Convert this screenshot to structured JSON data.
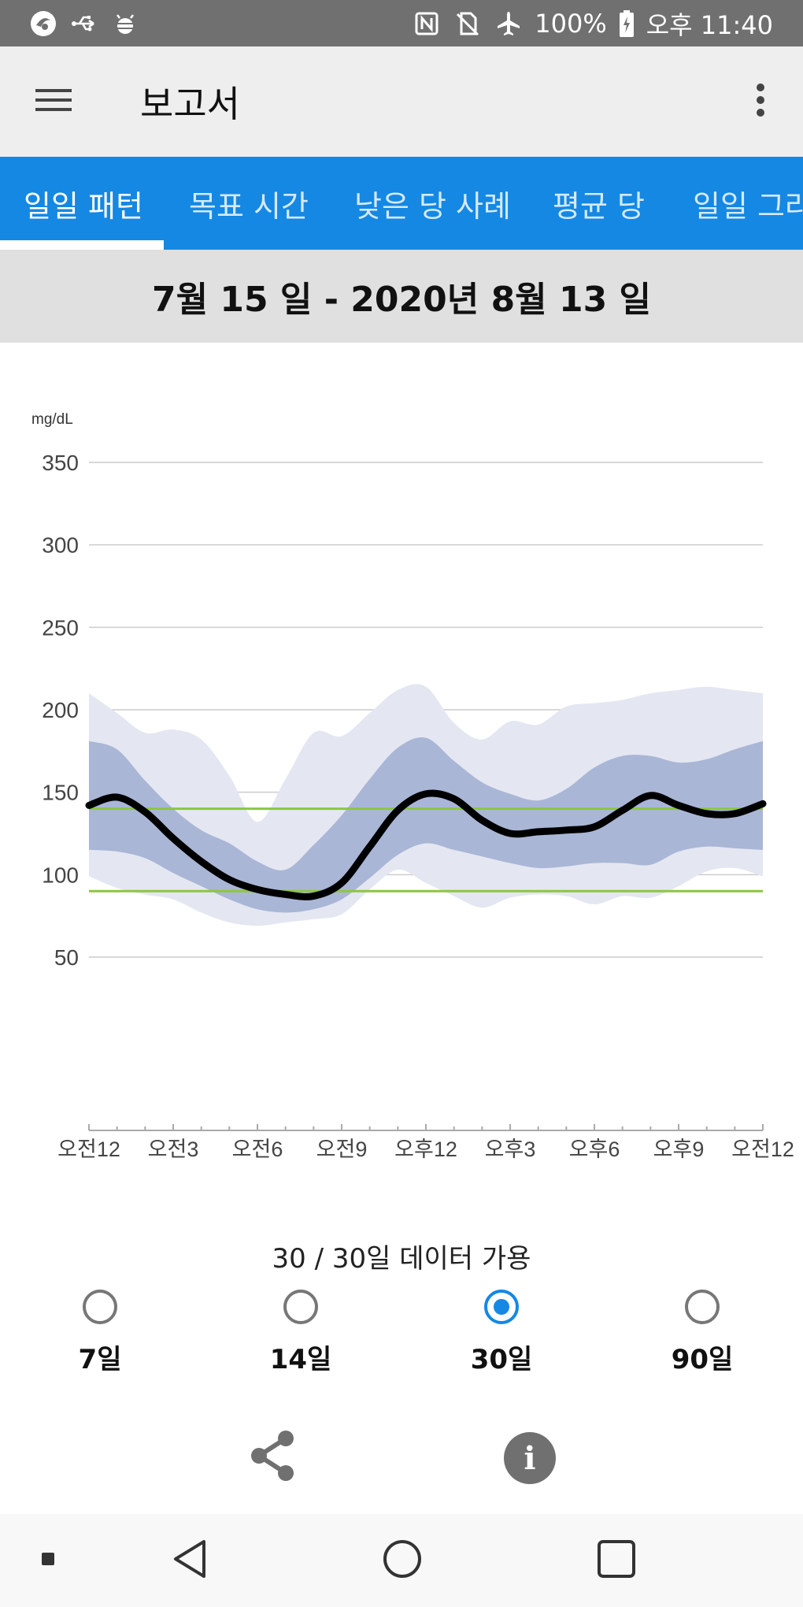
{
  "status_bar": {
    "left_icons": [
      "app-notification-icon",
      "usb-icon",
      "debug-bug-icon"
    ],
    "right_icons": [
      "nfc-icon",
      "no-sim-icon",
      "airplane-mode-icon",
      "battery-charging-icon"
    ],
    "battery": "100%",
    "time": "오후 11:40"
  },
  "app_bar": {
    "title": "보고서",
    "menu_icon": "menu-icon",
    "more_icon": "more-vert-icon"
  },
  "tabs": [
    {
      "label": "일일 패턴",
      "active": true
    },
    {
      "label": "목표 시간",
      "active": false
    },
    {
      "label": "낮은 당 사례",
      "active": false
    },
    {
      "label": "평균 당",
      "active": false
    },
    {
      "label": "일일 그라",
      "active": false
    }
  ],
  "date_range": "7월 15 일 - 2020년 8월 13 일",
  "chart_data": {
    "type": "area",
    "ylabel": "mg/dL",
    "ylim": [
      0,
      350
    ],
    "y_ticks": [
      350,
      300,
      250,
      200,
      150,
      100,
      50
    ],
    "grid": true,
    "x_tick_labels": [
      "오전12",
      "오전3",
      "오전6",
      "오전9",
      "오후12",
      "오후3",
      "오후6",
      "오후9",
      "오전12"
    ],
    "x_hours": [
      0,
      1,
      2,
      3,
      4,
      5,
      6,
      7,
      8,
      9,
      10,
      11,
      12,
      13,
      14,
      15,
      16,
      17,
      18,
      19,
      20,
      21,
      22,
      23,
      24
    ],
    "target_range": [
      90,
      140
    ],
    "colors": {
      "outer_band": "#e4e7f1",
      "inner_band": "#aab6d6",
      "median": "#000000",
      "target": "#8dc63f",
      "grid": "#cccccc"
    },
    "series": [
      {
        "role": "p95",
        "values": [
          210,
          198,
          186,
          188,
          182,
          160,
          132,
          158,
          186,
          184,
          198,
          212,
          214,
          192,
          182,
          193,
          191,
          202,
          204,
          206,
          210,
          212,
          214,
          212,
          210
        ]
      },
      {
        "role": "p75",
        "values": [
          181,
          176,
          157,
          140,
          127,
          119,
          108,
          103,
          118,
          136,
          158,
          177,
          183,
          169,
          156,
          149,
          145,
          152,
          165,
          172,
          172,
          168,
          170,
          176,
          181
        ]
      },
      {
        "role": "median",
        "values": [
          142,
          147,
          138,
          122,
          108,
          97,
          91,
          88,
          87,
          95,
          117,
          139,
          149,
          146,
          133,
          125,
          126,
          127,
          129,
          139,
          148,
          142,
          137,
          137,
          143
        ]
      },
      {
        "role": "p25",
        "values": [
          115,
          114,
          110,
          101,
          93,
          85,
          79,
          77,
          79,
          85,
          98,
          112,
          119,
          115,
          111,
          107,
          104,
          105,
          107,
          107,
          106,
          114,
          117,
          116,
          115
        ]
      },
      {
        "role": "p5",
        "values": [
          99,
          92,
          88,
          85,
          77,
          71,
          69,
          71,
          73,
          76,
          91,
          103,
          95,
          87,
          80,
          86,
          88,
          87,
          82,
          87,
          86,
          93,
          102,
          104,
          99
        ]
      }
    ]
  },
  "availability_text": "30 / 30일 데이터 가용",
  "periods": [
    {
      "label": "7일",
      "selected": false
    },
    {
      "label": "14일",
      "selected": false
    },
    {
      "label": "30일",
      "selected": true
    },
    {
      "label": "90일",
      "selected": false
    }
  ],
  "actions": {
    "share_icon": "share-icon",
    "info_icon": "info-icon",
    "info_glyph": "i"
  },
  "nav_bar": [
    "notification-dot-icon",
    "back-icon",
    "home-icon",
    "recents-icon"
  ]
}
